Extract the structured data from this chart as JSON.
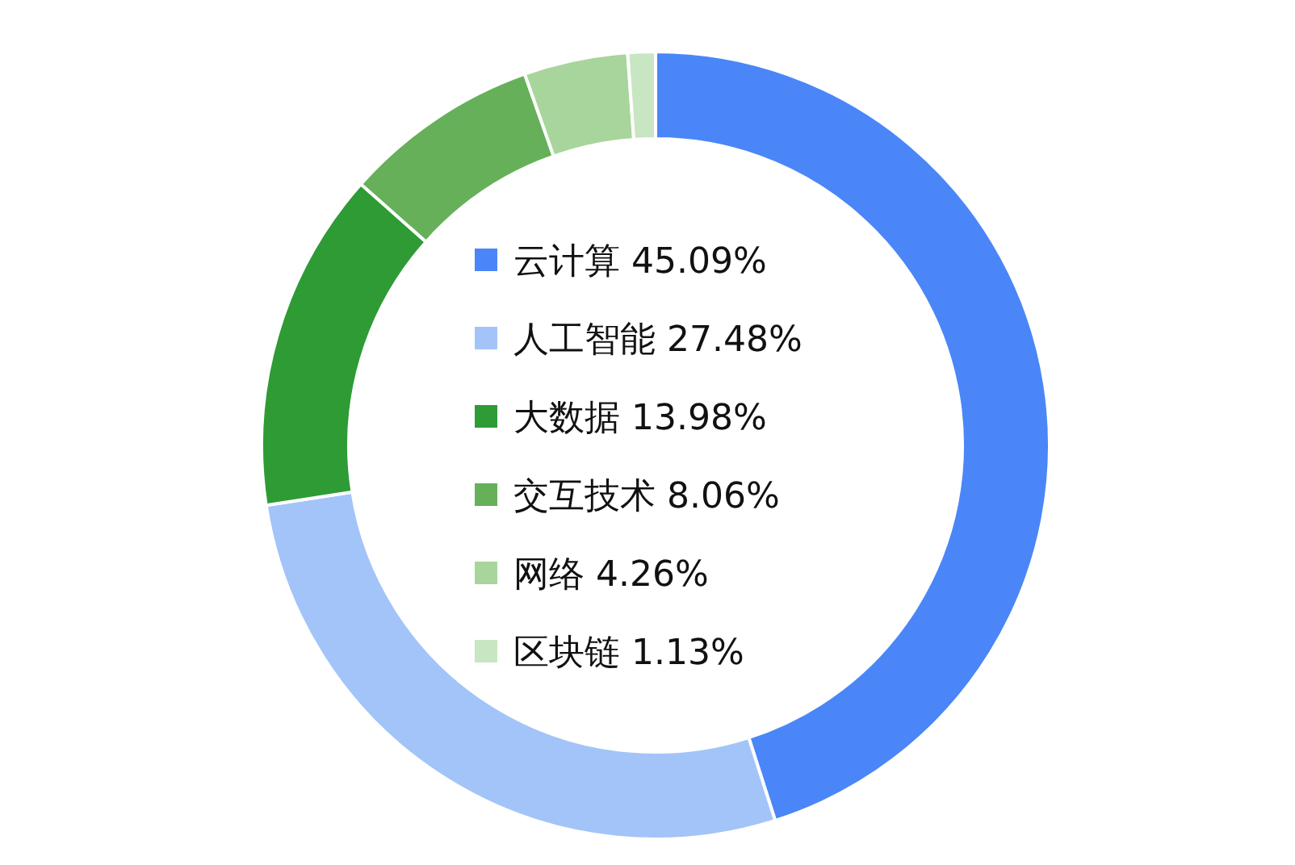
{
  "chart_data": {
    "type": "donut",
    "categories": [
      "云计算",
      "人工智能",
      "大数据",
      "交互技术",
      "网络",
      "区块链"
    ],
    "values": [
      45.09,
      27.48,
      13.98,
      8.06,
      4.26,
      1.13
    ],
    "value_labels": [
      "45.09%",
      "27.48%",
      "13.98%",
      "8.06%",
      "4.26%",
      "1.13%"
    ],
    "colors": [
      "#4a86f7",
      "#a3c4f8",
      "#2e9b35",
      "#66b05a",
      "#a8d59b",
      "#c8e6c1"
    ],
    "legend": "center"
  }
}
